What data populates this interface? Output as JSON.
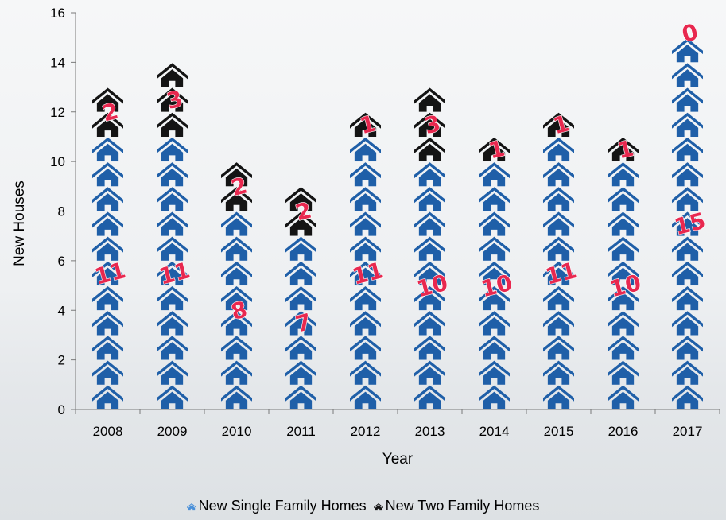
{
  "chart_data": {
    "type": "bar",
    "stacked": true,
    "title": "",
    "xlabel": "Year",
    "ylabel": "New Houses",
    "ylim": [
      0,
      16
    ],
    "yticks": [
      0,
      2,
      4,
      6,
      8,
      10,
      12,
      14,
      16
    ],
    "grid": false,
    "legend_position": "bottom",
    "categories": [
      "2008",
      "2009",
      "2010",
      "2011",
      "2012",
      "2013",
      "2014",
      "2015",
      "2016",
      "2017"
    ],
    "series": [
      {
        "name": "New Single Family Homes",
        "values": [
          11,
          11,
          8,
          7,
          11,
          10,
          10,
          11,
          10,
          15
        ],
        "color": "#1f5fa8",
        "icon": "house-icon"
      },
      {
        "name": "New Two Family Homes",
        "values": [
          2,
          3,
          2,
          2,
          1,
          3,
          1,
          1,
          1,
          0
        ],
        "color": "#141414",
        "icon": "house-icon"
      }
    ],
    "data_label_color": "#e8284f"
  }
}
